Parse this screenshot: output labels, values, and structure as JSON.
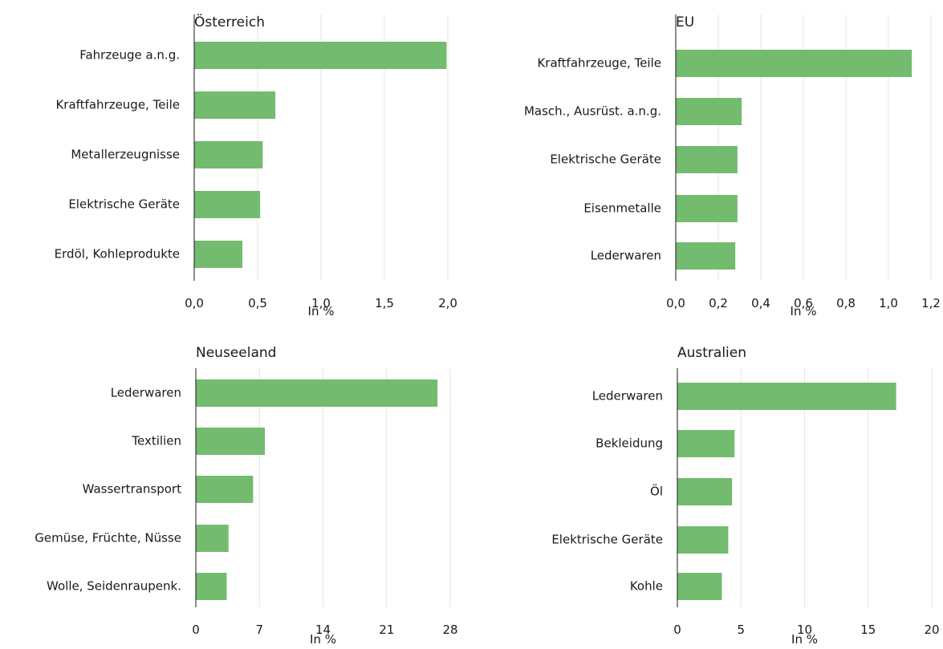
{
  "colors": {
    "bar": "#73bb6e",
    "grid": "#e6e6e6",
    "text": "#1a1a1a"
  },
  "chart_data": [
    {
      "type": "bar",
      "orientation": "horizontal",
      "title": "Österreich",
      "xlabel": "In %",
      "categories": [
        "Fahrzeuge a.n.g.",
        "Kraftfahrzeuge, Teile",
        "Metallerzeugnisse",
        "Elektrische Geräte",
        "Erdöl, Kohleprodukte"
      ],
      "values": [
        1.99,
        0.64,
        0.54,
        0.52,
        0.38
      ],
      "xlim": [
        0,
        2.0
      ],
      "xticks": [
        0,
        0.5,
        1.0,
        1.5,
        2.0
      ],
      "xtick_labels": [
        "0,0",
        "0,5",
        "1,0",
        "1,5",
        "2,0"
      ],
      "grid": true
    },
    {
      "type": "bar",
      "orientation": "horizontal",
      "title": "EU",
      "xlabel": "In %",
      "categories": [
        "Kraftfahrzeuge, Teile",
        "Masch., Ausrüst. a.n.g.",
        "Elektrische Geräte",
        "Eisenmetalle",
        "Lederwaren"
      ],
      "values": [
        1.11,
        0.31,
        0.29,
        0.29,
        0.28
      ],
      "xlim": [
        0,
        1.2
      ],
      "xticks": [
        0,
        0.2,
        0.4,
        0.6,
        0.8,
        1.0,
        1.2
      ],
      "xtick_labels": [
        "0,0",
        "0,2",
        "0,4",
        "0,6",
        "0,8",
        "1,0",
        "1,2"
      ],
      "grid": true
    },
    {
      "type": "bar",
      "orientation": "horizontal",
      "title": "Neuseeland",
      "xlabel": "In %",
      "categories": [
        "Lederwaren",
        "Textilien",
        "Wassertransport",
        "Gemüse, Früchte, Nüsse",
        "Wolle, Seidenraupenk."
      ],
      "values": [
        26.6,
        7.6,
        6.3,
        3.6,
        3.4
      ],
      "xlim": [
        0,
        28
      ],
      "xticks": [
        0,
        7,
        14,
        21,
        28
      ],
      "xtick_labels": [
        "0",
        "7",
        "14",
        "21",
        "28"
      ],
      "grid": true
    },
    {
      "type": "bar",
      "orientation": "horizontal",
      "title": "Australien",
      "xlabel": "In %",
      "categories": [
        "Lederwaren",
        "Bekleidung",
        "Öl",
        "Elektrische Geräte",
        "Kohle"
      ],
      "values": [
        17.2,
        4.5,
        4.3,
        4.0,
        3.5
      ],
      "xlim": [
        0,
        20
      ],
      "xticks": [
        0,
        5,
        10,
        15,
        20
      ],
      "xtick_labels": [
        "0",
        "5",
        "10",
        "15",
        "20"
      ],
      "grid": true
    }
  ]
}
